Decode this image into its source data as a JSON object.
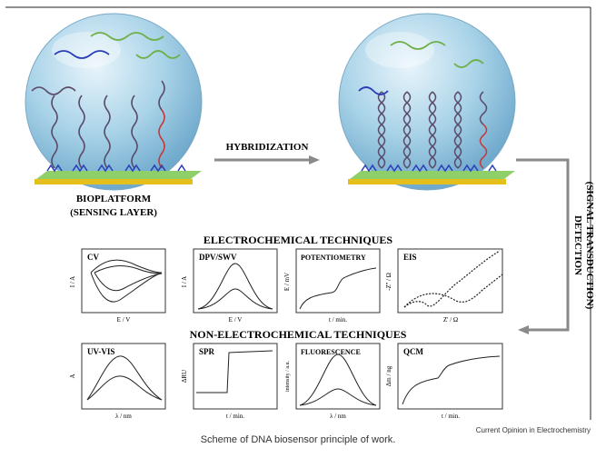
{
  "labels": {
    "hybridization": "HYBRIDIZATION",
    "bioplatform_line1": "BIOPLATFORM",
    "bioplatform_line2": "(SENSING LAYER)",
    "detection_line1": "DETECTION",
    "detection_line2": "(SIGNAL TRANSDUCTION)",
    "electrochemical": "ELECTROCHEMICAL TECHNIQUES",
    "non_electrochemical": "NON-ELECTROCHEMICAL TECHNIQUES"
  },
  "panels": {
    "cv": {
      "title": "CV",
      "ylabel": "I / A",
      "xlabel": "E / V"
    },
    "dpv": {
      "title": "DPV/SWV",
      "ylabel": "I / A",
      "xlabel": "E / V"
    },
    "pot": {
      "title": "POTENTIOMETRY",
      "ylabel": "E / mV",
      "xlabel": "t / min."
    },
    "eis": {
      "title": "EIS",
      "ylabel": "-Z'' / Ω",
      "xlabel": "Z' / Ω"
    },
    "uv": {
      "title": "UV-VIS",
      "ylabel": "A",
      "xlabel": "λ / nm"
    },
    "spr": {
      "title": "SPR",
      "ylabel": "ΔRU",
      "xlabel": "t / min."
    },
    "fluo": {
      "title": "FLUORESCENCE",
      "ylabel": "intensity / a.u.",
      "xlabel": "λ / nm"
    },
    "qcm": {
      "title": "QCM",
      "ylabel": "Δm / ng",
      "xlabel": "t / min."
    }
  },
  "credit": "Current Opinion in Electrochemistry",
  "caption": "Scheme of DNA biosensor principle of work.",
  "colors": {
    "sphere": "#a9d3e8",
    "gold": "#e5c01d",
    "layer": "#8fcf6a",
    "probe": "#5a4a6a",
    "target_blue": "#2a3fb8",
    "target_green": "#6fb04a",
    "mismatch": "#c43a3a",
    "arrow": "#8a8a8a"
  }
}
